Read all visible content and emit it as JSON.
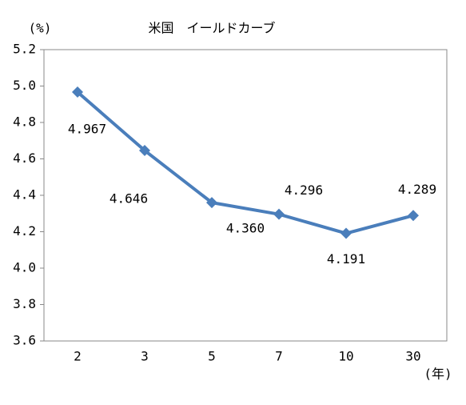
{
  "chart_data": {
    "type": "line",
    "title": "米国　イールドカーブ",
    "y_unit": "(%)",
    "x_unit": "(年)",
    "categories": [
      "2",
      "3",
      "5",
      "7",
      "10",
      "30"
    ],
    "series": [
      {
        "name": "yield",
        "color": "#4a7ebb",
        "values": [
          4.967,
          4.646,
          4.36,
          4.296,
          4.191,
          4.289
        ],
        "value_labels": [
          "4.967",
          "4.646",
          "4.360",
          "4.296",
          "4.191",
          "4.289"
        ]
      }
    ],
    "ylim": [
      3.6,
      5.2
    ],
    "yticks": [
      3.6,
      3.8,
      {
        "value": 4,
        "label": "4.0"
      },
      4.2,
      4.4,
      4.6,
      4.8,
      {
        "value": 5,
        "label": "5.0"
      },
      5.2
    ],
    "grid": false
  }
}
